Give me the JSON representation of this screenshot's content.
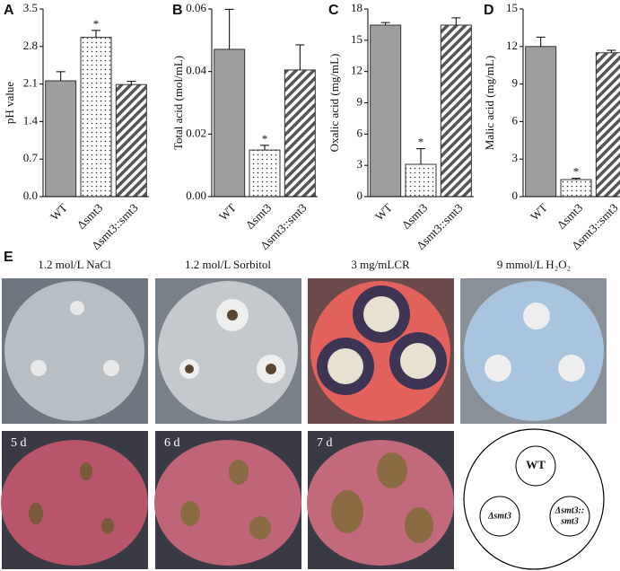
{
  "chart_data": [
    {
      "type": "bar",
      "panel": "A",
      "ylabel": "pH value",
      "categories": [
        "WT",
        "Δsmt3",
        "Δsmt3::smt3"
      ],
      "values": [
        2.16,
        2.97,
        2.09
      ],
      "errors": [
        0.17,
        0.13,
        0.06
      ],
      "significance": [
        null,
        "*",
        null
      ],
      "patterns": [
        "solid",
        "dots",
        "hatch"
      ],
      "color": "#9e9e9e",
      "ylim": [
        0,
        3.5
      ],
      "yticks": [
        {
          "value": 0,
          "label": "0.0"
        },
        0.7,
        1.4,
        2.1,
        2.8,
        3.5
      ]
    },
    {
      "type": "bar",
      "panel": "B",
      "ylabel": "Total acid (mol/mL)",
      "categories": [
        "WT",
        "Δsmt3",
        "Δsmt3::smt3"
      ],
      "values": [
        0.0471,
        0.0149,
        0.0405
      ],
      "errors": [
        0.0128,
        0.0015,
        0.008
      ],
      "significance": [
        null,
        "*",
        null
      ],
      "patterns": [
        "solid",
        "dots",
        "hatch"
      ],
      "color": "#9e9e9e",
      "ylim": [
        0,
        0.06
      ],
      "yticks": [
        {
          "value": 0,
          "label": "0.00"
        },
        0.02,
        0.04,
        0.06
      ]
    },
    {
      "type": "bar",
      "panel": "C",
      "ylabel": "Oxalic acid (mg/mL)",
      "categories": [
        "WT",
        "Δsmt3",
        "Δsmt3::smt3"
      ],
      "values": [
        16.45,
        3.1,
        16.45
      ],
      "errors": [
        0.25,
        1.5,
        0.7
      ],
      "significance": [
        null,
        "*",
        null
      ],
      "patterns": [
        "solid",
        "dots",
        "hatch"
      ],
      "color": "#9e9e9e",
      "ylim": [
        0,
        18
      ],
      "yticks": [
        0,
        3,
        6,
        9,
        12,
        15,
        18
      ]
    },
    {
      "type": "bar",
      "panel": "D",
      "ylabel": "Malic acid (mg/mL)",
      "categories": [
        "WT",
        "Δsmt3",
        "Δsmt3::smt3"
      ],
      "values": [
        12.0,
        1.36,
        11.5
      ],
      "errors": [
        0.75,
        0.1,
        0.2
      ],
      "significance": [
        null,
        "*",
        null
      ],
      "patterns": [
        "solid",
        "dots",
        "hatch"
      ],
      "color": "#9e9e9e",
      "ylim": [
        0,
        15
      ],
      "yticks": [
        0,
        3,
        6,
        9,
        12,
        15
      ]
    }
  ],
  "panel_e": {
    "label": "E",
    "conditions": [
      "1.2 mol/L NaCl",
      "1.2 mol/L Sorbitol",
      "3 mg/mLCR",
      "9 mmol/L H₂O₂"
    ],
    "days": [
      "5 d",
      "6 d",
      "7 d"
    ],
    "diagram": [
      "WT",
      "Δsmt3",
      "Δsmt3::",
      "smt3"
    ]
  }
}
